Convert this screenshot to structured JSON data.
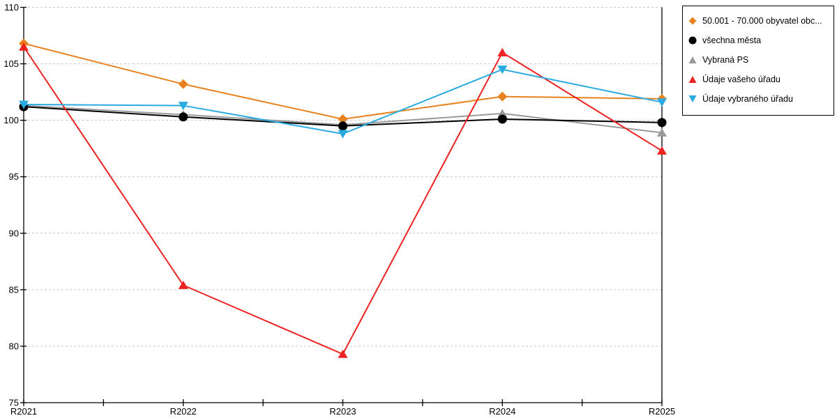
{
  "chart_data": {
    "type": "line",
    "title": "",
    "xlabel": "",
    "ylabel": "",
    "categories": [
      "R2021",
      "R2022",
      "R2023",
      "R2024",
      "R2025"
    ],
    "series": [
      {
        "name": "50.001 - 70.000 obyvatel obc...",
        "color": "#E8821E",
        "marker": "diamond",
        "values": [
          106.8,
          103.2,
          100.1,
          102.1,
          101.9
        ]
      },
      {
        "name": "všechna města",
        "color": "#000000",
        "marker": "circle",
        "values": [
          101.2,
          100.3,
          99.5,
          100.1,
          99.8
        ]
      },
      {
        "name": "Vybraná PS",
        "color": "#9A9A9A",
        "marker": "triangle-up",
        "values": [
          101.3,
          100.5,
          99.6,
          100.6,
          98.9
        ]
      },
      {
        "name": "Údaje vašeho úřadu",
        "color": "#EE2222",
        "marker": "triangle-up",
        "values": [
          106.5,
          85.4,
          79.3,
          106.0,
          97.3
        ]
      },
      {
        "name": "Údaje vybraného úřadu",
        "color": "#29ABE2",
        "marker": "triangle-down",
        "values": [
          101.4,
          101.3,
          98.8,
          104.5,
          101.6
        ]
      }
    ],
    "ylim": [
      75,
      110
    ],
    "ytick_labels": [
      "75",
      "80",
      "85",
      "90",
      "95",
      "100",
      "105",
      "110"
    ],
    "grid": "horizontal-dashed",
    "has_minor_x_ticks": true,
    "legend_position": "outside-top-right"
  },
  "colors": {
    "background": "#FFFFFF",
    "axis": "#000000",
    "grid": "#C6C6C6",
    "tick_label": "#000000",
    "legend_border": "#000000"
  }
}
